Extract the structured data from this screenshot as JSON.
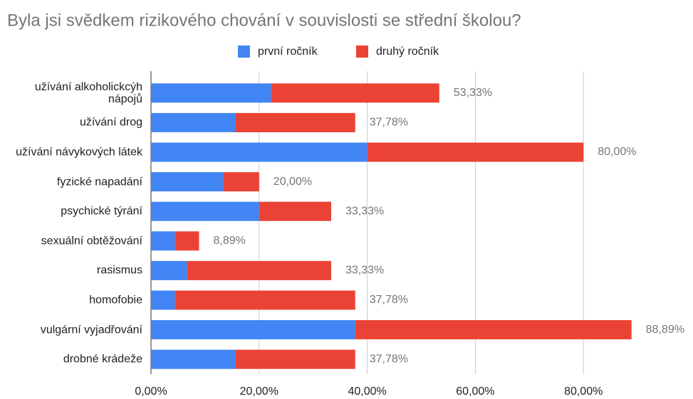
{
  "chart_data": {
    "type": "stacked_bar_horizontal",
    "title": "Byla jsi svědkem rizikového chování v souvislosti se střední školou?",
    "categories": [
      "užívání alkoholickcýh nápojů",
      "užívání drog",
      "užívání návykových látek",
      "fyzické napadání",
      "psychické týrání",
      "sexuální obtěžování",
      "rasismus",
      "homofobie",
      "vulgární vyjadřování",
      "drobné krádeže"
    ],
    "series": [
      {
        "name": "první ročník",
        "color": "#4285f4",
        "values": [
          22.22,
          15.56,
          40.0,
          13.33,
          20.0,
          4.44,
          6.67,
          4.44,
          37.78,
          15.56
        ]
      },
      {
        "name": "druhý ročník",
        "color": "#ea4335",
        "values": [
          31.11,
          22.22,
          40.0,
          6.67,
          13.33,
          4.45,
          26.66,
          33.34,
          51.11,
          22.22
        ]
      }
    ],
    "totals": [
      53.33,
      37.78,
      80.0,
      20.0,
      33.33,
      8.89,
      33.33,
      37.78,
      88.89,
      37.78
    ],
    "total_labels": [
      "53,33%",
      "37,78%",
      "80,00%",
      "20,00%",
      "33,33%",
      "8,89%",
      "33,33%",
      "37,78%",
      "88,89%",
      "37,78%"
    ],
    "xlim": [
      0,
      100
    ],
    "xticks": [
      {
        "value": 0,
        "label": "0,00%"
      },
      {
        "value": 20,
        "label": "20,00%"
      },
      {
        "value": 40,
        "label": "40,00%"
      },
      {
        "value": 60,
        "label": "60,00%"
      },
      {
        "value": 80,
        "label": "80,00%"
      }
    ],
    "grid": true,
    "legend": "top"
  }
}
